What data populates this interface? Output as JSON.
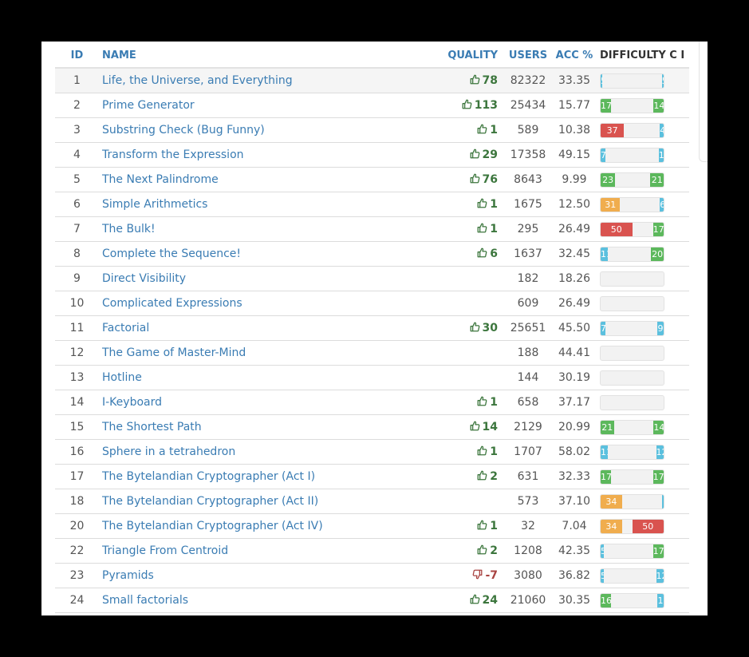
{
  "columns": {
    "id": "ID",
    "name": "NAME",
    "quality": "QUALITY",
    "users": "USERS",
    "acc": "ACC %",
    "difficulty": "DIFFICULTY C I"
  },
  "colors": {
    "green": "#5cb85c",
    "blue": "#5bc0de",
    "red": "#d9534f",
    "orange": "#f0ad4e"
  },
  "rows": [
    {
      "id": "1",
      "name": "Life, the Universe, and Everything",
      "quality": "78",
      "quality_sign": "up",
      "users": "82322",
      "acc": "33.35",
      "diff": [
        {
          "text": "5",
          "frac": 0.03,
          "color": "#5bc0de"
        },
        {
          "text": "5",
          "frac": 0.03,
          "color": "#5bc0de"
        }
      ]
    },
    {
      "id": "2",
      "name": "Prime Generator",
      "quality": "113",
      "quality_sign": "up",
      "users": "25434",
      "acc": "15.77",
      "diff": [
        {
          "text": "17",
          "frac": 0.17,
          "color": "#5cb85c"
        },
        {
          "text": "14",
          "frac": 0.16,
          "color": "#5cb85c"
        }
      ]
    },
    {
      "id": "3",
      "name": "Substring Check (Bug Funny)",
      "quality": "1",
      "quality_sign": "up",
      "users": "589",
      "acc": "10.38",
      "diff": [
        {
          "text": "37",
          "frac": 0.37,
          "color": "#d9534f"
        },
        {
          "text": "4",
          "frac": 0.06,
          "color": "#5bc0de"
        }
      ]
    },
    {
      "id": "4",
      "name": "Transform the Expression",
      "quality": "29",
      "quality_sign": "up",
      "users": "17358",
      "acc": "49.15",
      "diff": [
        {
          "text": "7",
          "frac": 0.07,
          "color": "#5bc0de"
        },
        {
          "text": "1",
          "frac": 0.08,
          "color": "#5bc0de"
        }
      ]
    },
    {
      "id": "5",
      "name": "The Next Palindrome",
      "quality": "76",
      "quality_sign": "up",
      "users": "8643",
      "acc": "9.99",
      "diff": [
        {
          "text": "23",
          "frac": 0.23,
          "color": "#5cb85c"
        },
        {
          "text": "21",
          "frac": 0.21,
          "color": "#5cb85c"
        }
      ]
    },
    {
      "id": "6",
      "name": "Simple Arithmetics",
      "quality": "1",
      "quality_sign": "up",
      "users": "1675",
      "acc": "12.50",
      "diff": [
        {
          "text": "31",
          "frac": 0.31,
          "color": "#f0ad4e"
        },
        {
          "text": "6",
          "frac": 0.06,
          "color": "#5bc0de"
        }
      ]
    },
    {
      "id": "7",
      "name": "The Bulk!",
      "quality": "1",
      "quality_sign": "up",
      "users": "295",
      "acc": "26.49",
      "diff": [
        {
          "text": "50",
          "frac": 0.5,
          "color": "#d9534f"
        },
        {
          "text": "17",
          "frac": 0.17,
          "color": "#5cb85c"
        }
      ]
    },
    {
      "id": "8",
      "name": "Complete the Sequence!",
      "quality": "6",
      "quality_sign": "up",
      "users": "1637",
      "acc": "32.45",
      "diff": [
        {
          "text": "11",
          "frac": 0.11,
          "color": "#5bc0de"
        },
        {
          "text": "20",
          "frac": 0.2,
          "color": "#5cb85c"
        }
      ]
    },
    {
      "id": "9",
      "name": "Direct Visibility",
      "quality": "",
      "quality_sign": "",
      "users": "182",
      "acc": "18.26",
      "diff": []
    },
    {
      "id": "10",
      "name": "Complicated Expressions",
      "quality": "",
      "quality_sign": "",
      "users": "609",
      "acc": "26.49",
      "diff": []
    },
    {
      "id": "11",
      "name": "Factorial",
      "quality": "30",
      "quality_sign": "up",
      "users": "25651",
      "acc": "45.50",
      "diff": [
        {
          "text": "7",
          "frac": 0.07,
          "color": "#5bc0de"
        },
        {
          "text": "9",
          "frac": 0.1,
          "color": "#5bc0de"
        }
      ]
    },
    {
      "id": "12",
      "name": "The Game of Master-Mind",
      "quality": "",
      "quality_sign": "",
      "users": "188",
      "acc": "44.41",
      "diff": []
    },
    {
      "id": "13",
      "name": "Hotline",
      "quality": "",
      "quality_sign": "",
      "users": "144",
      "acc": "30.19",
      "diff": []
    },
    {
      "id": "14",
      "name": "I-Keyboard",
      "quality": "1",
      "quality_sign": "up",
      "users": "658",
      "acc": "37.17",
      "diff": []
    },
    {
      "id": "15",
      "name": "The Shortest Path",
      "quality": "14",
      "quality_sign": "up",
      "users": "2129",
      "acc": "20.99",
      "diff": [
        {
          "text": "21",
          "frac": 0.21,
          "color": "#5cb85c"
        },
        {
          "text": "14",
          "frac": 0.16,
          "color": "#5cb85c"
        }
      ]
    },
    {
      "id": "16",
      "name": "Sphere in a tetrahedron",
      "quality": "1",
      "quality_sign": "up",
      "users": "1707",
      "acc": "58.02",
      "diff": [
        {
          "text": "11",
          "frac": 0.11,
          "color": "#5bc0de"
        },
        {
          "text": "12",
          "frac": 0.12,
          "color": "#5bc0de"
        }
      ]
    },
    {
      "id": "17",
      "name": "The Bytelandian Cryptographer (Act I)",
      "quality": "2",
      "quality_sign": "up",
      "users": "631",
      "acc": "32.33",
      "diff": [
        {
          "text": "17",
          "frac": 0.17,
          "color": "#5cb85c"
        },
        {
          "text": "17",
          "frac": 0.17,
          "color": "#5cb85c"
        }
      ]
    },
    {
      "id": "18",
      "name": "The Bytelandian Cryptographer (Act II)",
      "quality": "",
      "quality_sign": "",
      "users": "573",
      "acc": "37.10",
      "diff": [
        {
          "text": "34",
          "frac": 0.34,
          "color": "#f0ad4e"
        },
        {
          "text": "",
          "frac": 0.02,
          "color": "#5bc0de"
        }
      ]
    },
    {
      "id": "20",
      "name": "The Bytelandian Cryptographer (Act IV)",
      "quality": "1",
      "quality_sign": "up",
      "users": "32",
      "acc": "7.04",
      "diff": [
        {
          "text": "34",
          "frac": 0.34,
          "color": "#f0ad4e"
        },
        {
          "text": "50",
          "frac": 0.5,
          "color": "#d9534f"
        }
      ]
    },
    {
      "id": "22",
      "name": "Triangle From Centroid",
      "quality": "2",
      "quality_sign": "up",
      "users": "1208",
      "acc": "42.35",
      "diff": [
        {
          "text": "5",
          "frac": 0.05,
          "color": "#5bc0de"
        },
        {
          "text": "17",
          "frac": 0.17,
          "color": "#5cb85c"
        }
      ]
    },
    {
      "id": "23",
      "name": "Pyramids",
      "quality": "-7",
      "quality_sign": "down",
      "users": "3080",
      "acc": "36.82",
      "diff": [
        {
          "text": "5",
          "frac": 0.05,
          "color": "#5bc0de"
        },
        {
          "text": "12",
          "frac": 0.12,
          "color": "#5bc0de"
        }
      ]
    },
    {
      "id": "24",
      "name": "Small factorials",
      "quality": "24",
      "quality_sign": "up",
      "users": "21060",
      "acc": "30.35",
      "diff": [
        {
          "text": "16",
          "frac": 0.16,
          "color": "#5cb85c"
        },
        {
          "text": "1",
          "frac": 0.1,
          "color": "#5bc0de"
        }
      ]
    }
  ]
}
